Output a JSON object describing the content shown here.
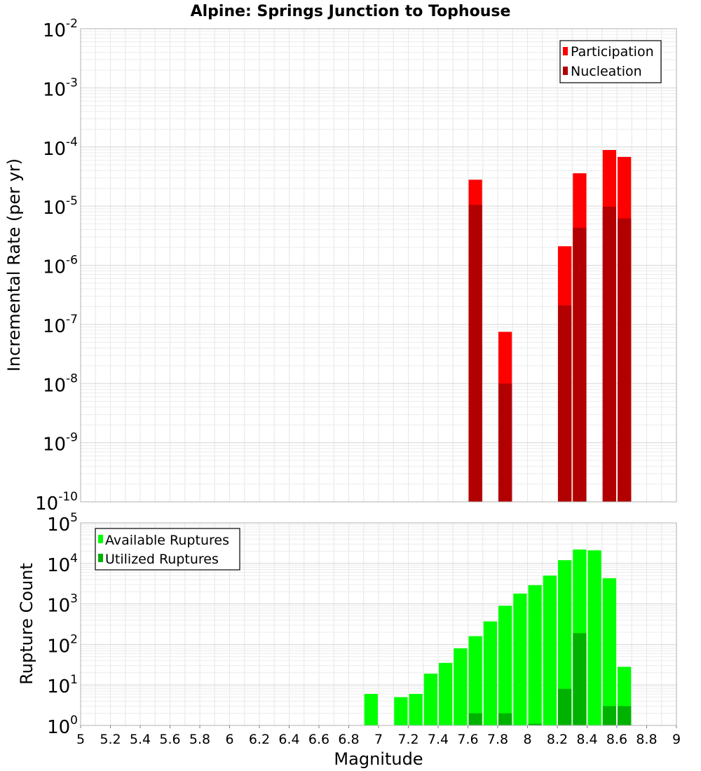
{
  "chart_data": [
    {
      "type": "bar",
      "title": "Alpine: Springs Junction to Tophouse",
      "xlabel": "Magnitude",
      "ylabel": "Incremental Rate (per yr)",
      "yscale": "log",
      "xlim": [
        5,
        9
      ],
      "ylim_exp": [
        -10,
        -2
      ],
      "bin_width": 0.1,
      "legend_position": "top-right",
      "x_ticks": [
        "5",
        "5.2",
        "5.4",
        "5.6",
        "5.8",
        "6",
        "6.2",
        "6.4",
        "6.6",
        "6.8",
        "7",
        "7.2",
        "7.4",
        "7.6",
        "7.8",
        "8",
        "8.2",
        "8.4",
        "8.6",
        "8.8",
        "9"
      ],
      "y_tick_exponents": [
        "-10",
        "-9",
        "-8",
        "-7",
        "-6",
        "-5",
        "-4",
        "-3",
        "-2"
      ],
      "series": [
        {
          "name": "Participation",
          "color": "#ff0000",
          "points": [
            {
              "x": 7.65,
              "y": 2.8e-05
            },
            {
              "x": 7.85,
              "y": 7.5e-08
            },
            {
              "x": 8.25,
              "y": 2.1e-06
            },
            {
              "x": 8.35,
              "y": 3.6e-05
            },
            {
              "x": 8.55,
              "y": 8.9e-05
            },
            {
              "x": 8.65,
              "y": 6.8e-05
            }
          ]
        },
        {
          "name": "Nucleation",
          "color": "#b20000",
          "points": [
            {
              "x": 7.65,
              "y": 1.05e-05
            },
            {
              "x": 7.85,
              "y": 1e-08
            },
            {
              "x": 8.25,
              "y": 2.1e-07
            },
            {
              "x": 8.35,
              "y": 4.3e-06
            },
            {
              "x": 8.55,
              "y": 9.8e-06
            },
            {
              "x": 8.65,
              "y": 6.2e-06
            }
          ]
        }
      ]
    },
    {
      "type": "bar",
      "title": "",
      "xlabel": "Magnitude",
      "ylabel": "Rupture Count",
      "yscale": "log",
      "xlim": [
        5,
        9
      ],
      "ylim_exp": [
        0,
        5
      ],
      "bin_width": 0.1,
      "legend_position": "top-left",
      "x_ticks": [
        "5",
        "5.2",
        "5.4",
        "5.6",
        "5.8",
        "6",
        "6.2",
        "6.4",
        "6.6",
        "6.8",
        "7",
        "7.2",
        "7.4",
        "7.6",
        "7.8",
        "8",
        "8.2",
        "8.4",
        "8.6",
        "8.8",
        "9"
      ],
      "y_tick_exponents": [
        "0",
        "1",
        "2",
        "3",
        "4",
        "5"
      ],
      "series": [
        {
          "name": "Available Ruptures",
          "color": "#00ff00",
          "points": [
            {
              "x": 6.95,
              "y": 6
            },
            {
              "x": 7.15,
              "y": 5
            },
            {
              "x": 7.25,
              "y": 6
            },
            {
              "x": 7.35,
              "y": 19
            },
            {
              "x": 7.45,
              "y": 35
            },
            {
              "x": 7.55,
              "y": 80
            },
            {
              "x": 7.65,
              "y": 160
            },
            {
              "x": 7.75,
              "y": 370
            },
            {
              "x": 7.85,
              "y": 900
            },
            {
              "x": 7.95,
              "y": 1800
            },
            {
              "x": 8.05,
              "y": 2900
            },
            {
              "x": 8.15,
              "y": 5000
            },
            {
              "x": 8.25,
              "y": 12000
            },
            {
              "x": 8.35,
              "y": 22000
            },
            {
              "x": 8.45,
              "y": 21000
            },
            {
              "x": 8.55,
              "y": 4300
            },
            {
              "x": 8.65,
              "y": 28
            }
          ]
        },
        {
          "name": "Utilized Ruptures",
          "color": "#00b200",
          "points": [
            {
              "x": 7.65,
              "y": 2
            },
            {
              "x": 7.85,
              "y": 2
            },
            {
              "x": 8.05,
              "y": 1.1
            },
            {
              "x": 8.25,
              "y": 8
            },
            {
              "x": 8.35,
              "y": 190
            },
            {
              "x": 8.55,
              "y": 3
            },
            {
              "x": 8.65,
              "y": 3
            }
          ]
        }
      ]
    }
  ]
}
